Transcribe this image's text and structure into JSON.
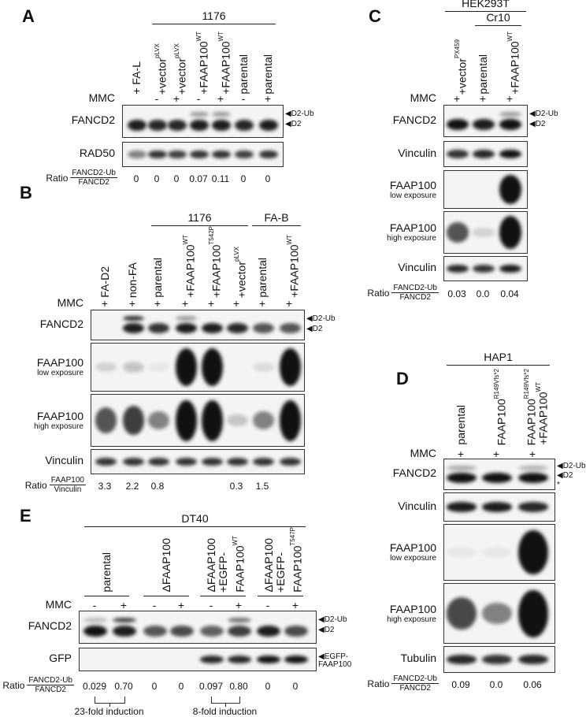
{
  "panels": [
    {
      "id": "A",
      "letter": "A",
      "headers": [
        {
          "text": "1176"
        }
      ],
      "lanes": [
        {
          "text": "+ FA-L",
          "sup": "",
          "mmc": "+"
        },
        {
          "text": "+vector",
          "sup": "pLVX",
          "mmc": "-"
        },
        {
          "text": "+vector",
          "sup": "pLVX",
          "mmc": "+"
        },
        {
          "text": "+FAAP100",
          "sup": "WT",
          "mmc": "-"
        },
        {
          "text": "+FAAP100",
          "sup": "WT",
          "mmc": "+"
        },
        {
          "text": "parental",
          "sup": "",
          "mmc": "-"
        },
        {
          "text": "parental",
          "sup": "",
          "mmc": "+"
        }
      ],
      "mmc_label": "MMC",
      "blots": [
        {
          "label": "FANCD2",
          "sub": "",
          "markers": [
            "◀D2-Ub",
            "◀D2"
          ],
          "d2": [
            0.95,
            0.9,
            0.9,
            0.95,
            0.95,
            0.9,
            0.95
          ],
          "ub": [
            0,
            0,
            0,
            0.4,
            0.4,
            0,
            0
          ]
        },
        {
          "label": "RAD50",
          "sub": "",
          "markers": [],
          "d2": [
            0.5,
            0.85,
            0.8,
            0.85,
            0.85,
            0.8,
            0.85
          ],
          "ub": []
        }
      ],
      "ratio": {
        "label": "Ratio",
        "num": "FANCD2-Ub",
        "den": "FANCD2",
        "values": [
          "0",
          "0",
          "0",
          "0.07",
          "0.11",
          "0",
          "0"
        ]
      }
    },
    {
      "id": "B",
      "letter": "B",
      "headers": [
        {
          "text": "1176"
        },
        {
          "text": "FA-B"
        }
      ],
      "lanes": [
        {
          "text": "FA-D2",
          "sup": "",
          "mmc": "+"
        },
        {
          "text": "non-FA",
          "sup": "",
          "mmc": "+"
        },
        {
          "text": "parental",
          "sup": "",
          "mmc": "+"
        },
        {
          "text": "+FAAP100",
          "sup": "WT",
          "mmc": "+"
        },
        {
          "text": "+FAAP100",
          "sup": "T542P",
          "mmc": "+"
        },
        {
          "text": "+vector",
          "sup": "pLVX",
          "mmc": "+"
        },
        {
          "text": "parental",
          "sup": "",
          "mmc": "+"
        },
        {
          "text": "+FAAP100",
          "sup": "WT",
          "mmc": "+"
        }
      ],
      "mmc_label": "MMC",
      "blots": [
        {
          "label": "FANCD2",
          "sub": "",
          "markers": [
            "◀D2-Ub",
            "◀D2"
          ],
          "d2": [
            0,
            0.95,
            0.85,
            0.95,
            0.95,
            0.9,
            0.7,
            0.7
          ],
          "ub": [
            0,
            0.9,
            0,
            0.4,
            0,
            0,
            0,
            0
          ]
        },
        {
          "label": "FAAP100",
          "sub": "low exposure",
          "markers": [],
          "d2": [
            0.15,
            0.2,
            0.05,
            1,
            1,
            0,
            0.1,
            1
          ],
          "ub": []
        },
        {
          "label": "FAAP100",
          "sub": "high exposure",
          "markers": [],
          "d2": [
            0.7,
            0.8,
            0.5,
            1,
            1,
            0.2,
            0.5,
            1
          ],
          "ub": []
        },
        {
          "label": "Vinculin",
          "sub": "",
          "markers": [],
          "d2": [
            0.85,
            0.85,
            0.85,
            0.85,
            0.85,
            0.85,
            0.85,
            0.85
          ],
          "ub": []
        }
      ],
      "ratio": {
        "label": "Ratio",
        "num": "FAAP100",
        "den": "Vinculin",
        "values": [
          "3.3",
          "2.2",
          "0.8",
          "",
          "",
          "0.3",
          "1.5",
          ""
        ]
      }
    },
    {
      "id": "C",
      "letter": "C",
      "headers": [
        {
          "text": "HEK293T"
        },
        {
          "text": "Cr10"
        }
      ],
      "lanes": [
        {
          "text": "+vector",
          "sup": "PX459",
          "mmc": "+"
        },
        {
          "text": "parental",
          "sup": "",
          "mmc": "+"
        },
        {
          "text": "+FAAP100",
          "sup": "WT",
          "mmc": "+"
        }
      ],
      "mmc_label": "MMC",
      "blots": [
        {
          "label": "FANCD2",
          "sub": "",
          "markers": [
            "◀D2-Ub",
            "◀D2"
          ],
          "d2": [
            1,
            0.95,
            1
          ],
          "ub": [
            0,
            0,
            0.4
          ]
        },
        {
          "label": "Vinculin",
          "sub": "",
          "markers": [],
          "d2": [
            0.85,
            0.9,
            1
          ],
          "ub": []
        },
        {
          "label": "FAAP100",
          "sub": "low exposure",
          "markers": [],
          "d2": [
            0,
            0,
            1
          ],
          "ub": []
        },
        {
          "label": "FAAP100",
          "sub": "high exposure",
          "markers": [],
          "d2": [
            0.7,
            0.15,
            1
          ],
          "ub": []
        },
        {
          "label": "Vinculin",
          "sub": "",
          "markers": [],
          "d2": [
            0.9,
            0.85,
            0.95
          ],
          "ub": []
        }
      ],
      "ratio": {
        "label": "Ratio",
        "num": "FANCD2-Ub",
        "den": "FANCD2",
        "values": [
          "0.03",
          "0.0",
          "0.04"
        ]
      }
    },
    {
      "id": "D",
      "letter": "D",
      "headers": [
        {
          "text": "HAP1"
        }
      ],
      "lanes": [
        {
          "text": "parental",
          "sup": "",
          "mmc": "+"
        },
        {
          "text": "FAAP100",
          "sup": "R149Vfs*2",
          "mmc": "+"
        },
        {
          "text": "FAAP100",
          "sup": "R149Vfs*2",
          "text2": "+FAAP100",
          "sup2": "WT",
          "mmc": "+"
        }
      ],
      "mmc_label": "MMC",
      "blots": [
        {
          "label": "FANCD2",
          "sub": "",
          "markers": [
            "◀D2-Ub",
            "◀D2",
            "*"
          ],
          "d2": [
            1,
            1,
            1
          ],
          "ub": [
            0.35,
            0,
            0.3
          ]
        },
        {
          "label": "Vinculin",
          "sub": "",
          "markers": [],
          "d2": [
            0.95,
            0.95,
            0.9
          ],
          "ub": []
        },
        {
          "label": "FAAP100",
          "sub": "low exposure",
          "markers": [],
          "d2": [
            0.05,
            0.05,
            1
          ],
          "ub": []
        },
        {
          "label": "FAAP100",
          "sub": "high exposure",
          "markers": [],
          "d2": [
            0.75,
            0.5,
            1
          ],
          "ub": []
        },
        {
          "label": "Tubulin",
          "sub": "",
          "markers": [],
          "d2": [
            0.9,
            0.85,
            0.9
          ],
          "ub": []
        }
      ],
      "ratio": {
        "label": "Ratio",
        "num": "FANCD2-Ub",
        "den": "FANCD2",
        "values": [
          "0.09",
          "0.0",
          "0.06"
        ]
      }
    },
    {
      "id": "E",
      "letter": "E",
      "headers": [
        {
          "text": "DT40"
        }
      ],
      "groups": [
        {
          "lines": [
            "parental"
          ],
          "sup": ""
        },
        {
          "lines": [
            "ΔFAAP100"
          ],
          "sup": ""
        },
        {
          "lines": [
            "ΔFAAP100",
            "+EGFP-",
            "FAAP100"
          ],
          "sup": "WT"
        },
        {
          "lines": [
            "ΔFAAP100",
            "+EGFP-",
            "FAAP100"
          ],
          "sup": "T547P"
        }
      ],
      "lanes": [
        {
          "mmc": "-"
        },
        {
          "mmc": "+"
        },
        {
          "mmc": "-"
        },
        {
          "mmc": "+"
        },
        {
          "mmc": "-"
        },
        {
          "mmc": "+"
        },
        {
          "mmc": "-"
        },
        {
          "mmc": "+"
        }
      ],
      "mmc_label": "MMC",
      "blots": [
        {
          "label": "FANCD2",
          "sub": "",
          "markers": [
            "◀D2-Ub",
            "◀D2"
          ],
          "d2": [
            1,
            0.95,
            0.7,
            0.75,
            0.65,
            0.8,
            0.95,
            0.75
          ],
          "ub": [
            0.25,
            0.8,
            0,
            0,
            0,
            0.6,
            0,
            0
          ]
        },
        {
          "label": "GFP",
          "sub": "",
          "markers": [
            "◀EGFP-",
            "FAAP100"
          ],
          "d2": [
            0,
            0,
            0,
            0,
            0.9,
            0.9,
            1,
            1
          ],
          "ub": []
        }
      ],
      "ratio": {
        "label": "Ratio",
        "num": "FANCD2-Ub",
        "den": "FANCD2",
        "values": [
          "0.029",
          "0.70",
          "0",
          "0",
          "0.097",
          "0.80",
          "0",
          "0"
        ]
      },
      "inductions": [
        {
          "text": "23-fold induction"
        },
        {
          "text": "8-fold induction"
        }
      ]
    }
  ]
}
